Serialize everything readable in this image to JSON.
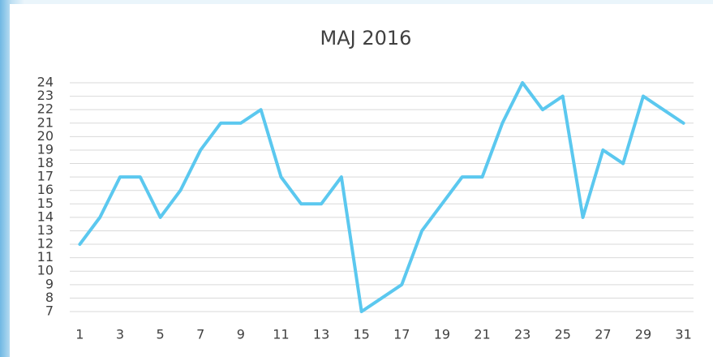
{
  "chart_data": {
    "type": "line",
    "title": "MAJ 2016",
    "categories": [
      "1",
      null,
      "3",
      null,
      "5",
      null,
      "7",
      null,
      "9",
      null,
      "11",
      null,
      "13",
      null,
      "15",
      null,
      "17",
      null,
      "19",
      null,
      "21",
      null,
      "23",
      null,
      "25",
      null,
      "27",
      null,
      "29",
      null,
      "31"
    ],
    "series": [
      {
        "name": "MAJ 2016",
        "color": "#5bc8ef",
        "values": [
          12,
          14,
          17,
          17,
          14,
          16,
          19,
          21,
          21,
          22,
          17,
          15,
          15,
          17,
          7,
          8,
          9,
          13,
          15,
          17,
          17,
          21,
          24,
          22,
          23,
          14,
          19,
          18,
          23,
          22,
          21
        ]
      }
    ],
    "ylim": [
      7,
      24
    ],
    "yticks": [
      7,
      8,
      9,
      10,
      11,
      12,
      13,
      14,
      15,
      16,
      17,
      18,
      19,
      20,
      21,
      22,
      23,
      24
    ],
    "grid": true
  }
}
